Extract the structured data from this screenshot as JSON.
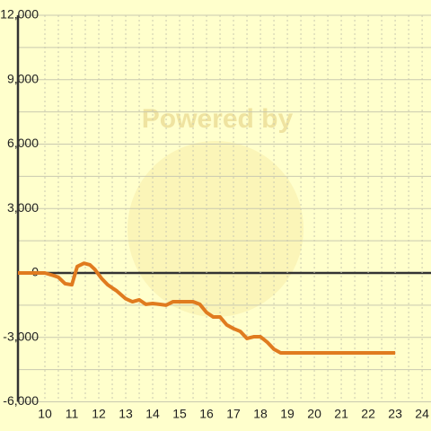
{
  "chart_data": {
    "type": "line",
    "watermark": "Powered by",
    "series": [
      {
        "color": "#e07b1f",
        "x": [
          9,
          10,
          10.33,
          10.5,
          10.75,
          11,
          11.2,
          11.45,
          11.67,
          11.85,
          12.1,
          12.33,
          12.67,
          13,
          13.25,
          13.5,
          13.75,
          14,
          14.25,
          14.5,
          14.75,
          15,
          15.5,
          15.75,
          16,
          16.25,
          16.5,
          16.75,
          17,
          17.25,
          17.5,
          17.75,
          18,
          18.25,
          18.5,
          18.75,
          19,
          23
        ],
        "values": [
          0,
          0,
          -125,
          -200,
          -500,
          -550,
          300,
          450,
          380,
          170,
          -250,
          -550,
          -840,
          -1200,
          -1340,
          -1250,
          -1460,
          -1420,
          -1460,
          -1500,
          -1340,
          -1340,
          -1340,
          -1460,
          -1840,
          -2050,
          -2050,
          -2420,
          -2590,
          -2720,
          -3050,
          -2970,
          -2970,
          -3220,
          -3550,
          -3720,
          -3720,
          -3720
        ]
      }
    ],
    "xlim": [
      9,
      24.33
    ],
    "ylim": [
      -6000,
      12000
    ],
    "xticks": [
      10,
      11,
      12,
      13,
      14,
      15,
      16,
      17,
      18,
      19,
      20,
      21,
      22,
      23,
      24
    ],
    "yticks": [
      {
        "value": -6000,
        "label": "-6,000"
      },
      {
        "value": -3000,
        "label": "-3,000"
      },
      0,
      {
        "value": 3000,
        "label": "3,000"
      },
      {
        "value": 6000,
        "label": "6,000"
      },
      {
        "value": 9000,
        "label": "9,000"
      },
      {
        "value": 12000,
        "label": "12,000"
      }
    ],
    "grid": true
  }
}
